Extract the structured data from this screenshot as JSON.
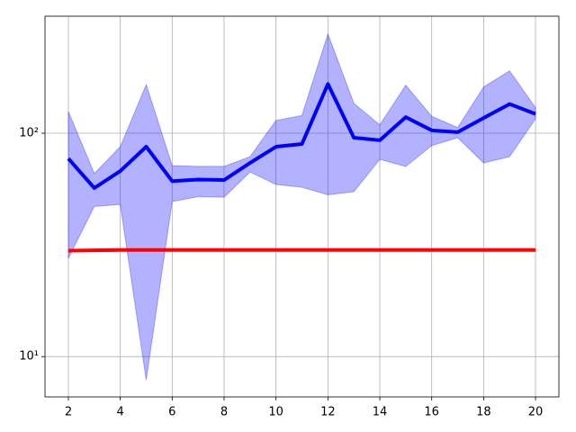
{
  "chart_data": {
    "type": "line",
    "log_y": true,
    "grid": true,
    "x": [
      2,
      3,
      4,
      5,
      6,
      7,
      8,
      9,
      10,
      11,
      12,
      13,
      14,
      15,
      16,
      17,
      18,
      19,
      20
    ],
    "series": [
      {
        "color": "#0000ff",
        "values": [
          77,
          56.8,
          67.7,
          87,
          61,
          62,
          61.7,
          73.6,
          87,
          89.5,
          166,
          95.5,
          93,
          118,
          103,
          101,
          117,
          135,
          122
        ]
      },
      {
        "color": "#ff0000",
        "values": [
          29.8,
          29.9,
          30,
          30,
          30,
          30,
          30,
          30,
          30,
          30,
          30,
          30,
          30,
          30,
          30,
          30,
          30,
          30,
          30
        ]
      }
    ],
    "band": {
      "color": "#0000ff",
      "upper": [
        125,
        66,
        87,
        165,
        71.6,
        71,
        71,
        78.5,
        114,
        120,
        278,
        136,
        109,
        164,
        119,
        106,
        161,
        190,
        130
      ],
      "lower": [
        27.5,
        47,
        48,
        7.85,
        49.4,
        52,
        51.7,
        67,
        58.9,
        57.3,
        53,
        54.7,
        76.4,
        71,
        88,
        95.5,
        73.6,
        78.5,
        116
      ]
    },
    "xlim": [
      1.1,
      20.9
    ],
    "xticks": [
      2,
      4,
      6,
      8,
      10,
      12,
      14,
      16,
      18,
      20
    ],
    "ylim": [
      6.6,
      334
    ],
    "yticks": [
      {
        "value": 10,
        "label": "10¹"
      },
      {
        "value": 100,
        "label": "10²"
      }
    ]
  }
}
